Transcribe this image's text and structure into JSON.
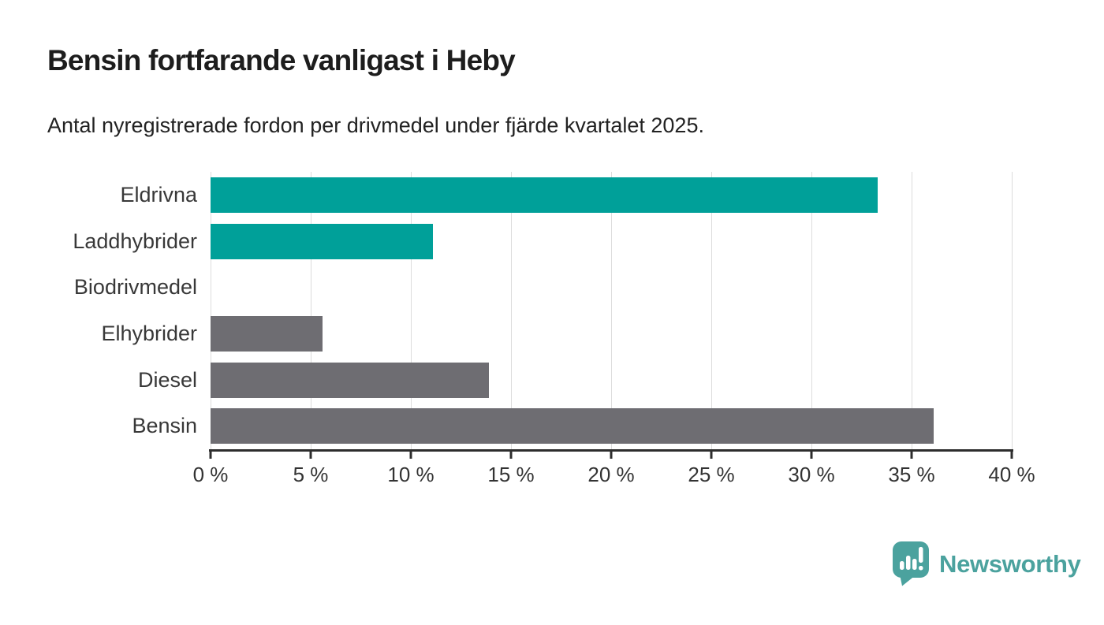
{
  "header": {
    "title": "Bensin fortfarande vanligast i Heby",
    "subtitle": "Antal nyregistrerade fordon per drivmedel under fjärde kvartalet 2025."
  },
  "chart_data": {
    "type": "bar",
    "orientation": "horizontal",
    "title": "Bensin fortfarande vanligast i Heby",
    "subtitle": "Antal nyregistrerade fordon per drivmedel under fjärde kvartalet 2025.",
    "categories": [
      "Eldrivna",
      "Laddhybrider",
      "Biodrivmedel",
      "Elhybrider",
      "Diesel",
      "Bensin"
    ],
    "values": [
      33.3,
      11.1,
      0,
      5.6,
      13.9,
      36.1
    ],
    "unit": "%",
    "bar_colors": [
      "#00A099",
      "#00A099",
      "#00A099",
      "#6E6D72",
      "#6E6D72",
      "#6E6D72"
    ],
    "xlim": [
      0,
      40
    ],
    "x_ticks": [
      0,
      5,
      10,
      15,
      20,
      25,
      30,
      35,
      40
    ],
    "x_tick_labels": [
      "0 %",
      "5 %",
      "10 %",
      "15 %",
      "20 %",
      "25 %",
      "30 %",
      "35 %",
      "40 %"
    ],
    "grid": "vertical-gridlines-on",
    "legend": "none",
    "colors": {
      "accent_teal": "#00A099",
      "neutral_gray": "#6E6D72",
      "gridline": "#dcdcdc",
      "axis": "#2d2d2d",
      "tick_text": "#333333",
      "category_text": "#383838"
    }
  },
  "branding": {
    "logo_text": "Newsworthy",
    "logo_color": "#4BA29E",
    "logo_icon": "newsworthy-pin-barchart-icon"
  }
}
